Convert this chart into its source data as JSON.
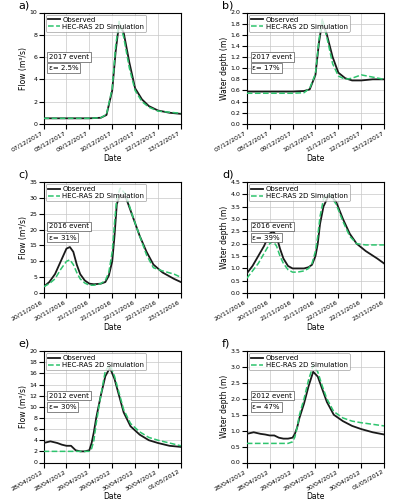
{
  "panels": [
    {
      "label": "a)",
      "ylabel": "Flow (m³/s)",
      "xlabel": "Date",
      "event": "2017 event",
      "error": "ε= 2.5%",
      "ylim": [
        0,
        10
      ],
      "yticks": [
        0,
        2,
        4,
        6,
        8,
        10
      ],
      "xtick_labels": [
        "07/12/2017",
        "08/12/2017",
        "09/12/2017",
        "10/12/2017",
        "11/12/2017",
        "12/12/2017",
        "13/12/2017"
      ],
      "obs_x": [
        0,
        0.5,
        1.0,
        1.5,
        2.0,
        2.5,
        2.75,
        3.0,
        3.15,
        3.3,
        3.5,
        3.75,
        4.0,
        4.3,
        4.6,
        5.0,
        5.5,
        6.0
      ],
      "obs_y": [
        0.5,
        0.5,
        0.5,
        0.5,
        0.5,
        0.55,
        0.8,
        3.0,
        6.5,
        9.0,
        8.2,
        5.5,
        3.2,
        2.2,
        1.6,
        1.2,
        1.0,
        0.9
      ],
      "sim_x": [
        0,
        0.5,
        1.0,
        1.5,
        2.0,
        2.5,
        2.75,
        3.0,
        3.15,
        3.3,
        3.5,
        3.75,
        4.0,
        4.3,
        4.6,
        5.0,
        5.5,
        6.0
      ],
      "sim_y": [
        0.5,
        0.5,
        0.5,
        0.5,
        0.5,
        0.55,
        0.85,
        3.2,
        7.0,
        9.2,
        7.8,
        5.0,
        3.0,
        2.0,
        1.5,
        1.15,
        1.05,
        0.95
      ]
    },
    {
      "label": "b)",
      "ylabel": "Water depth (m)",
      "xlabel": "Date",
      "event": "2017 event",
      "error": "ε= 17%",
      "ylim": [
        0,
        2
      ],
      "yticks": [
        0,
        0.2,
        0.4,
        0.6,
        0.8,
        1.0,
        1.2,
        1.4,
        1.6,
        1.8,
        2.0
      ],
      "xtick_labels": [
        "07/12/2017",
        "08/12/2017",
        "09/12/2017",
        "10/12/2017",
        "11/12/2017",
        "12/12/2017",
        "13/12/2017"
      ],
      "obs_x": [
        0,
        0.5,
        1.0,
        1.5,
        2.0,
        2.5,
        2.75,
        3.0,
        3.15,
        3.3,
        3.5,
        3.75,
        4.0,
        4.3,
        4.6,
        5.0,
        5.5,
        6.0
      ],
      "obs_y": [
        0.58,
        0.58,
        0.58,
        0.58,
        0.58,
        0.59,
        0.62,
        0.88,
        1.45,
        1.85,
        1.6,
        1.2,
        0.92,
        0.82,
        0.78,
        0.78,
        0.8,
        0.8
      ],
      "sim_x": [
        0,
        0.5,
        1.0,
        1.5,
        2.0,
        2.5,
        2.75,
        3.0,
        3.15,
        3.3,
        3.5,
        3.75,
        4.0,
        4.3,
        4.6,
        5.0,
        5.5,
        6.0
      ],
      "sim_y": [
        0.55,
        0.55,
        0.55,
        0.55,
        0.55,
        0.56,
        0.64,
        0.9,
        1.5,
        1.88,
        1.55,
        1.08,
        0.86,
        0.8,
        0.82,
        0.88,
        0.84,
        0.8
      ]
    },
    {
      "label": "c)",
      "ylabel": "Flow (m³/s)",
      "xlabel": "Date",
      "event": "2016 event",
      "error": "ε= 31%",
      "ylim": [
        0,
        35
      ],
      "yticks": [
        0,
        5,
        10,
        15,
        20,
        25,
        30,
        35
      ],
      "xtick_labels": [
        "20/11/2016",
        "20/11/2016",
        "21/11/2016",
        "21/11/2016",
        "22/11/2016",
        "22/11/2016",
        "23/11/2016"
      ],
      "obs_x": [
        0,
        0.25,
        0.5,
        0.75,
        1.0,
        1.15,
        1.3,
        1.45,
        1.6,
        1.8,
        2.0,
        2.2,
        2.5,
        2.7,
        2.85,
        3.0,
        3.1,
        3.2,
        3.35,
        3.6,
        3.9,
        4.2,
        4.5,
        4.8,
        5.2,
        5.7,
        6.0
      ],
      "obs_y": [
        2,
        3.5,
        6,
        10,
        14,
        14.5,
        13,
        9,
        6,
        4,
        3,
        2.8,
        3,
        3.5,
        5.5,
        10,
        18,
        28,
        31,
        30,
        24,
        18,
        13,
        9,
        6.5,
        4.5,
        3.5
      ],
      "sim_x": [
        0,
        0.25,
        0.5,
        0.75,
        1.0,
        1.15,
        1.3,
        1.45,
        1.6,
        1.8,
        2.0,
        2.2,
        2.5,
        2.7,
        2.85,
        3.0,
        3.1,
        3.2,
        3.35,
        3.6,
        3.9,
        4.2,
        4.5,
        4.8,
        5.2,
        5.7,
        6.0
      ],
      "sim_y": [
        2,
        3,
        4.5,
        7.5,
        10,
        10.5,
        9,
        6.5,
        4.5,
        3.2,
        2.5,
        2.5,
        3,
        4,
        6.5,
        13,
        22,
        30,
        33,
        31,
        24,
        18,
        12,
        8,
        7,
        6,
        5
      ]
    },
    {
      "label": "d)",
      "ylabel": "Water depth (m)",
      "xlabel": "Date",
      "event": "2016 event",
      "error": "ε= 39%",
      "ylim": [
        0,
        4.5
      ],
      "yticks": [
        0,
        0.5,
        1.0,
        1.5,
        2.0,
        2.5,
        3.0,
        3.5,
        4.0,
        4.5
      ],
      "xtick_labels": [
        "20/11/2016",
        "20/11/2016",
        "21/11/2016",
        "21/11/2016",
        "22/11/2016",
        "22/11/2016",
        "23/11/2016"
      ],
      "obs_x": [
        0,
        0.25,
        0.5,
        0.75,
        1.0,
        1.15,
        1.3,
        1.45,
        1.6,
        1.8,
        2.0,
        2.2,
        2.5,
        2.7,
        2.85,
        3.0,
        3.1,
        3.2,
        3.35,
        3.6,
        3.9,
        4.2,
        4.5,
        4.8,
        5.2,
        5.7,
        6.0
      ],
      "obs_y": [
        0.8,
        1.1,
        1.5,
        1.9,
        2.4,
        2.5,
        2.3,
        1.8,
        1.4,
        1.1,
        1.0,
        1.0,
        1.0,
        1.05,
        1.15,
        1.5,
        2.0,
        2.8,
        3.5,
        4.0,
        3.7,
        3.0,
        2.4,
        2.0,
        1.7,
        1.4,
        1.2
      ],
      "sim_x": [
        0,
        0.25,
        0.5,
        0.75,
        1.0,
        1.15,
        1.3,
        1.45,
        1.6,
        1.8,
        2.0,
        2.2,
        2.5,
        2.7,
        2.85,
        3.0,
        3.1,
        3.2,
        3.35,
        3.6,
        3.9,
        4.2,
        4.5,
        4.8,
        5.2,
        5.7,
        6.0
      ],
      "sim_y": [
        0.6,
        0.9,
        1.2,
        1.6,
        2.0,
        2.1,
        1.9,
        1.5,
        1.2,
        0.95,
        0.85,
        0.85,
        0.9,
        1.0,
        1.2,
        1.7,
        2.3,
        3.1,
        3.8,
        4.0,
        3.6,
        2.9,
        2.3,
        2.0,
        1.95,
        1.95,
        1.95
      ]
    },
    {
      "label": "e)",
      "ylabel": "Flow (m³/s)",
      "xlabel": "Date",
      "event": "2012 event",
      "error": "ε= 30%",
      "ylim": [
        0,
        20
      ],
      "yticks": [
        0,
        2,
        4,
        6,
        8,
        10,
        12,
        14,
        16,
        18,
        20
      ],
      "xtick_labels": [
        "28/04/2012",
        "28/04/2012",
        "29/04/2012",
        "29/04/2012",
        "30/04/2012",
        "30/04/2012",
        "01/05/2012"
      ],
      "obs_x": [
        0,
        0.3,
        0.6,
        0.8,
        1.0,
        1.2,
        1.4,
        1.6,
        1.8,
        2.0,
        2.1,
        2.2,
        2.3,
        2.5,
        2.7,
        2.9,
        3.1,
        3.3,
        3.5,
        3.8,
        4.2,
        4.6,
        5.0,
        5.5,
        6.0
      ],
      "obs_y": [
        3.5,
        3.8,
        3.5,
        3.2,
        3.0,
        3.0,
        2.2,
        2.0,
        2.0,
        2.2,
        3.5,
        5.5,
        8.0,
        12.0,
        15.5,
        17.0,
        15.0,
        12.0,
        9.0,
        6.5,
        5.0,
        4.0,
        3.5,
        3.0,
        2.8
      ],
      "sim_x": [
        0,
        0.3,
        0.6,
        0.8,
        1.0,
        1.2,
        1.4,
        1.6,
        1.8,
        2.0,
        2.1,
        2.2,
        2.3,
        2.5,
        2.7,
        2.9,
        3.1,
        3.3,
        3.5,
        3.8,
        4.2,
        4.6,
        5.0,
        5.5,
        6.0
      ],
      "sim_y": [
        2.0,
        2.0,
        2.0,
        2.0,
        2.0,
        2.0,
        2.0,
        2.0,
        2.0,
        2.0,
        2.5,
        4.0,
        7.0,
        12.0,
        16.5,
        17.5,
        15.5,
        12.5,
        9.5,
        7.0,
        5.5,
        4.5,
        4.0,
        3.5,
        3.0
      ]
    },
    {
      "label": "f)",
      "ylabel": "Water depth (m)",
      "xlabel": "Date",
      "event": "2012 event",
      "error": "ε= 47%",
      "ylim": [
        0,
        3.5
      ],
      "yticks": [
        0,
        0.5,
        1.0,
        1.5,
        2.0,
        2.5,
        3.0,
        3.5
      ],
      "xtick_labels": [
        "28/04/2012",
        "28/04/2012",
        "29/04/2012",
        "29/04/2012",
        "30/04/2012",
        "30/04/2012",
        "01/05/2012"
      ],
      "obs_x": [
        0,
        0.3,
        0.6,
        0.8,
        1.0,
        1.2,
        1.4,
        1.6,
        1.8,
        2.0,
        2.1,
        2.2,
        2.3,
        2.5,
        2.7,
        2.9,
        3.1,
        3.3,
        3.5,
        3.8,
        4.2,
        4.6,
        5.0,
        5.5,
        6.0
      ],
      "obs_y": [
        0.9,
        0.95,
        0.9,
        0.88,
        0.85,
        0.85,
        0.78,
        0.75,
        0.75,
        0.78,
        0.9,
        1.1,
        1.4,
        1.85,
        2.4,
        2.85,
        2.7,
        2.3,
        1.9,
        1.5,
        1.3,
        1.15,
        1.05,
        0.95,
        0.88
      ],
      "sim_x": [
        0,
        0.3,
        0.6,
        0.8,
        1.0,
        1.2,
        1.4,
        1.6,
        1.8,
        2.0,
        2.1,
        2.2,
        2.3,
        2.5,
        2.7,
        2.9,
        3.1,
        3.3,
        3.5,
        3.8,
        4.2,
        4.6,
        5.0,
        5.5,
        6.0
      ],
      "sim_y": [
        0.6,
        0.6,
        0.6,
        0.6,
        0.6,
        0.6,
        0.6,
        0.6,
        0.6,
        0.65,
        0.8,
        1.1,
        1.5,
        2.0,
        2.6,
        3.05,
        2.85,
        2.4,
        2.0,
        1.6,
        1.4,
        1.3,
        1.25,
        1.2,
        1.15
      ]
    }
  ],
  "obs_color": "#1a1a1a",
  "sim_color": "#2ec46e",
  "obs_lw": 1.3,
  "sim_lw": 1.1,
  "sim_ls": "--",
  "bg_color": "#ffffff",
  "grid_color": "#c8c8c8",
  "legend_fontsize": 5.0,
  "label_fontsize": 5.5,
  "tick_fontsize": 4.5,
  "annotation_fontsize": 5.0,
  "panel_label_fontsize": 8
}
